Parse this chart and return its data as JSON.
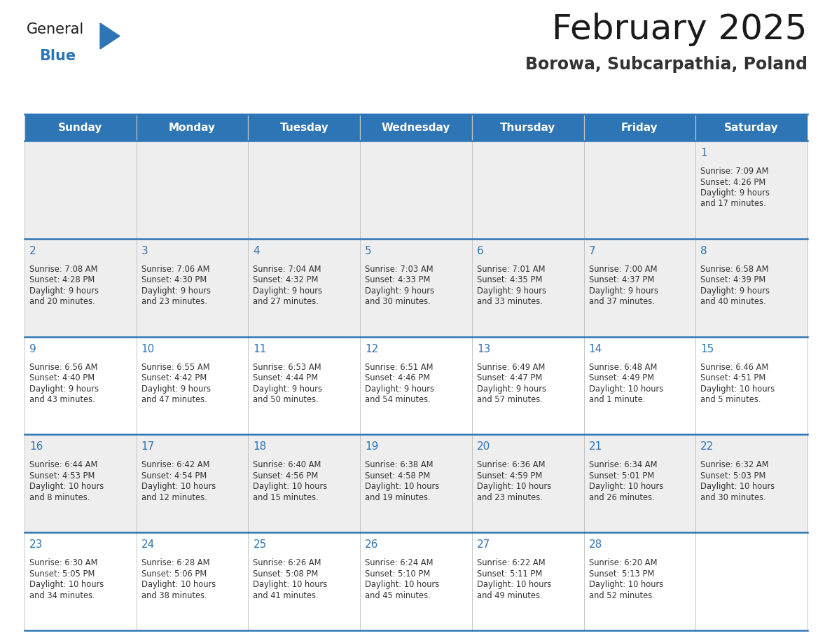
{
  "title": "February 2025",
  "subtitle": "Borowa, Subcarpathia, Poland",
  "header_color": "#2E75B6",
  "header_text_color": "#FFFFFF",
  "cell_bg_row0": "#EEEEEE",
  "cell_bg_row1": "#EEEEEE",
  "cell_bg_row2": "#FFFFFF",
  "cell_bg_row3": "#EEEEEE",
  "cell_bg_row4": "#FFFFFF",
  "text_color": "#333333",
  "day_number_color": "#2E75B6",
  "line_color": "#2E75B6",
  "weekdays": [
    "Sunday",
    "Monday",
    "Tuesday",
    "Wednesday",
    "Thursday",
    "Friday",
    "Saturday"
  ],
  "days": [
    {
      "day": 1,
      "col": 6,
      "row": 0,
      "sunrise": "7:09 AM",
      "sunset": "4:26 PM",
      "daylight": "9 hours and 17 minutes."
    },
    {
      "day": 2,
      "col": 0,
      "row": 1,
      "sunrise": "7:08 AM",
      "sunset": "4:28 PM",
      "daylight": "9 hours and 20 minutes."
    },
    {
      "day": 3,
      "col": 1,
      "row": 1,
      "sunrise": "7:06 AM",
      "sunset": "4:30 PM",
      "daylight": "9 hours and 23 minutes."
    },
    {
      "day": 4,
      "col": 2,
      "row": 1,
      "sunrise": "7:04 AM",
      "sunset": "4:32 PM",
      "daylight": "9 hours and 27 minutes."
    },
    {
      "day": 5,
      "col": 3,
      "row": 1,
      "sunrise": "7:03 AM",
      "sunset": "4:33 PM",
      "daylight": "9 hours and 30 minutes."
    },
    {
      "day": 6,
      "col": 4,
      "row": 1,
      "sunrise": "7:01 AM",
      "sunset": "4:35 PM",
      "daylight": "9 hours and 33 minutes."
    },
    {
      "day": 7,
      "col": 5,
      "row": 1,
      "sunrise": "7:00 AM",
      "sunset": "4:37 PM",
      "daylight": "9 hours and 37 minutes."
    },
    {
      "day": 8,
      "col": 6,
      "row": 1,
      "sunrise": "6:58 AM",
      "sunset": "4:39 PM",
      "daylight": "9 hours and 40 minutes."
    },
    {
      "day": 9,
      "col": 0,
      "row": 2,
      "sunrise": "6:56 AM",
      "sunset": "4:40 PM",
      "daylight": "9 hours and 43 minutes."
    },
    {
      "day": 10,
      "col": 1,
      "row": 2,
      "sunrise": "6:55 AM",
      "sunset": "4:42 PM",
      "daylight": "9 hours and 47 minutes."
    },
    {
      "day": 11,
      "col": 2,
      "row": 2,
      "sunrise": "6:53 AM",
      "sunset": "4:44 PM",
      "daylight": "9 hours and 50 minutes."
    },
    {
      "day": 12,
      "col": 3,
      "row": 2,
      "sunrise": "6:51 AM",
      "sunset": "4:46 PM",
      "daylight": "9 hours and 54 minutes."
    },
    {
      "day": 13,
      "col": 4,
      "row": 2,
      "sunrise": "6:49 AM",
      "sunset": "4:47 PM",
      "daylight": "9 hours and 57 minutes."
    },
    {
      "day": 14,
      "col": 5,
      "row": 2,
      "sunrise": "6:48 AM",
      "sunset": "4:49 PM",
      "daylight": "10 hours and 1 minute."
    },
    {
      "day": 15,
      "col": 6,
      "row": 2,
      "sunrise": "6:46 AM",
      "sunset": "4:51 PM",
      "daylight": "10 hours and 5 minutes."
    },
    {
      "day": 16,
      "col": 0,
      "row": 3,
      "sunrise": "6:44 AM",
      "sunset": "4:53 PM",
      "daylight": "10 hours and 8 minutes."
    },
    {
      "day": 17,
      "col": 1,
      "row": 3,
      "sunrise": "6:42 AM",
      "sunset": "4:54 PM",
      "daylight": "10 hours and 12 minutes."
    },
    {
      "day": 18,
      "col": 2,
      "row": 3,
      "sunrise": "6:40 AM",
      "sunset": "4:56 PM",
      "daylight": "10 hours and 15 minutes."
    },
    {
      "day": 19,
      "col": 3,
      "row": 3,
      "sunrise": "6:38 AM",
      "sunset": "4:58 PM",
      "daylight": "10 hours and 19 minutes."
    },
    {
      "day": 20,
      "col": 4,
      "row": 3,
      "sunrise": "6:36 AM",
      "sunset": "4:59 PM",
      "daylight": "10 hours and 23 minutes."
    },
    {
      "day": 21,
      "col": 5,
      "row": 3,
      "sunrise": "6:34 AM",
      "sunset": "5:01 PM",
      "daylight": "10 hours and 26 minutes."
    },
    {
      "day": 22,
      "col": 6,
      "row": 3,
      "sunrise": "6:32 AM",
      "sunset": "5:03 PM",
      "daylight": "10 hours and 30 minutes."
    },
    {
      "day": 23,
      "col": 0,
      "row": 4,
      "sunrise": "6:30 AM",
      "sunset": "5:05 PM",
      "daylight": "10 hours and 34 minutes."
    },
    {
      "day": 24,
      "col": 1,
      "row": 4,
      "sunrise": "6:28 AM",
      "sunset": "5:06 PM",
      "daylight": "10 hours and 38 minutes."
    },
    {
      "day": 25,
      "col": 2,
      "row": 4,
      "sunrise": "6:26 AM",
      "sunset": "5:08 PM",
      "daylight": "10 hours and 41 minutes."
    },
    {
      "day": 26,
      "col": 3,
      "row": 4,
      "sunrise": "6:24 AM",
      "sunset": "5:10 PM",
      "daylight": "10 hours and 45 minutes."
    },
    {
      "day": 27,
      "col": 4,
      "row": 4,
      "sunrise": "6:22 AM",
      "sunset": "5:11 PM",
      "daylight": "10 hours and 49 minutes."
    },
    {
      "day": 28,
      "col": 5,
      "row": 4,
      "sunrise": "6:20 AM",
      "sunset": "5:13 PM",
      "daylight": "10 hours and 52 minutes."
    }
  ],
  "logo_text_general": "General",
  "logo_text_blue": "Blue",
  "logo_color_general": "#1a1a1a",
  "logo_color_blue": "#2E75B6",
  "logo_triangle_color": "#2E75B6"
}
